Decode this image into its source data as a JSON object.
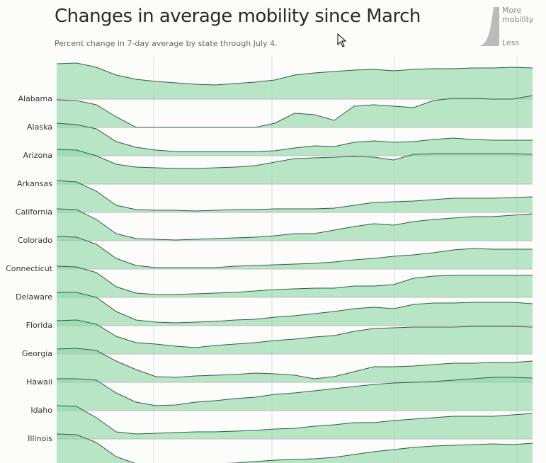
{
  "chart_data": {
    "type": "ridgeline",
    "title": "Changes in average mobility since March",
    "subtitle": "Percent change in 7-day average by state through July 4.",
    "legend_high": "More mobility",
    "legend_low": "Less",
    "ylim": [
      -50,
      10
    ],
    "color": "#8fd6a8",
    "line_color": "#2d5e40",
    "series": [
      {
        "name": null,
        "values": [
          0,
          1,
          -5,
          -16,
          -22,
          -25,
          -27,
          -29,
          -30,
          -28,
          -26,
          -23,
          -16,
          -13,
          -11,
          -9,
          -8,
          -10,
          -8,
          -7,
          -7,
          -6,
          -6,
          -5,
          -6
        ]
      },
      {
        "name": "Alabama",
        "values": [
          -11,
          -12,
          -18,
          -35,
          -50,
          -50,
          -50,
          -50,
          -50,
          -50,
          -50,
          -44,
          -30,
          -32,
          -40,
          -20,
          -18,
          -20,
          -22,
          -12,
          -9,
          -9,
          -10,
          -10,
          -5
        ]
      },
      {
        "name": "Alaska",
        "values": [
          -4,
          -6,
          -12,
          -30,
          -38,
          -42,
          -44,
          -44,
          -44,
          -44,
          -44,
          -43,
          -39,
          -36,
          -37,
          -31,
          -29,
          -31,
          -30,
          -27,
          -25,
          -27,
          -28,
          -28,
          -28
        ]
      },
      {
        "name": "Arizona",
        "values": [
          -1,
          -2,
          -10,
          -22,
          -26,
          -27,
          -28,
          -28,
          -27,
          -26,
          -24,
          -19,
          -14,
          -13,
          -12,
          -11,
          -12,
          -16,
          -8,
          -7,
          -7,
          -7,
          -7,
          -7,
          -8
        ]
      },
      {
        "name": "Arkansas",
        "values": [
          -5,
          -7,
          -20,
          -40,
          -46,
          -47,
          -47,
          -48,
          -47,
          -46,
          -46,
          -45,
          -45,
          -45,
          -44,
          -40,
          -36,
          -35,
          -34,
          -32,
          -30,
          -30,
          -30,
          -29,
          -28
        ]
      },
      {
        "name": "California",
        "values": [
          -5,
          -6,
          -20,
          -40,
          -47,
          -48,
          -49,
          -48,
          -47,
          -46,
          -45,
          -43,
          -40,
          -40,
          -35,
          -30,
          -26,
          -28,
          -23,
          -20,
          -18,
          -16,
          -16,
          -14,
          -12
        ]
      },
      {
        "name": "Colorado",
        "values": [
          -4,
          -5,
          -15,
          -35,
          -45,
          -48,
          -48,
          -48,
          -48,
          -46,
          -45,
          -44,
          -43,
          -42,
          -40,
          -37,
          -35,
          -32,
          -30,
          -27,
          -23,
          -21,
          -22,
          -22,
          -22
        ]
      },
      {
        "name": "Connecticut",
        "values": [
          -6,
          -7,
          -15,
          -35,
          -44,
          -46,
          -46,
          -45,
          -44,
          -43,
          -41,
          -39,
          -38,
          -37,
          -37,
          -34,
          -34,
          -32,
          -23,
          -20,
          -19,
          -19,
          -19,
          -19,
          -19
        ]
      },
      {
        "name": "Delaware",
        "values": [
          -3,
          -3,
          -10,
          -30,
          -42,
          -45,
          -46,
          -45,
          -44,
          -42,
          -41,
          -38,
          -36,
          -33,
          -30,
          -26,
          -24,
          -26,
          -20,
          -18,
          -18,
          -17,
          -17,
          -17,
          -19
        ]
      },
      {
        "name": "Florida",
        "values": [
          -3,
          -2,
          -8,
          -25,
          -34,
          -36,
          -39,
          -41,
          -38,
          -36,
          -34,
          -31,
          -29,
          -26,
          -24,
          -18,
          -14,
          -13,
          -12,
          -12,
          -12,
          -11,
          -11,
          -11,
          -12
        ]
      },
      {
        "name": "Georgia",
        "values": [
          -3,
          -2,
          -5,
          -20,
          -32,
          -42,
          -43,
          -41,
          -40,
          -39,
          -37,
          -38,
          -40,
          -45,
          -42,
          -35,
          -28,
          -28,
          -27,
          -25,
          -23,
          -23,
          -22,
          -22,
          -20
        ]
      },
      {
        "name": "Hawaii",
        "values": [
          -5,
          -5,
          -7,
          -25,
          -38,
          -43,
          -42,
          -38,
          -36,
          -33,
          -31,
          -27,
          -25,
          -22,
          -19,
          -16,
          -13,
          -11,
          -10,
          -9,
          -7,
          -5,
          -3,
          -3,
          -4
        ]
      },
      {
        "name": "Idaho",
        "values": [
          -3,
          -4,
          -20,
          -40,
          -43,
          -42,
          -41,
          -40,
          -40,
          -39,
          -38,
          -36,
          -35,
          -32,
          -30,
          -27,
          -27,
          -24,
          -22,
          -20,
          -18,
          -18,
          -18,
          -16,
          -14
        ]
      },
      {
        "name": "Illinois",
        "values": [
          -3,
          -4,
          -15,
          -35,
          -45,
          -45,
          -46,
          -46,
          -45,
          -44,
          -42,
          -40,
          -39,
          -38,
          -36,
          -32,
          -28,
          -25,
          -22,
          -20,
          -19,
          -18,
          -17,
          -18,
          -16
        ]
      }
    ]
  }
}
